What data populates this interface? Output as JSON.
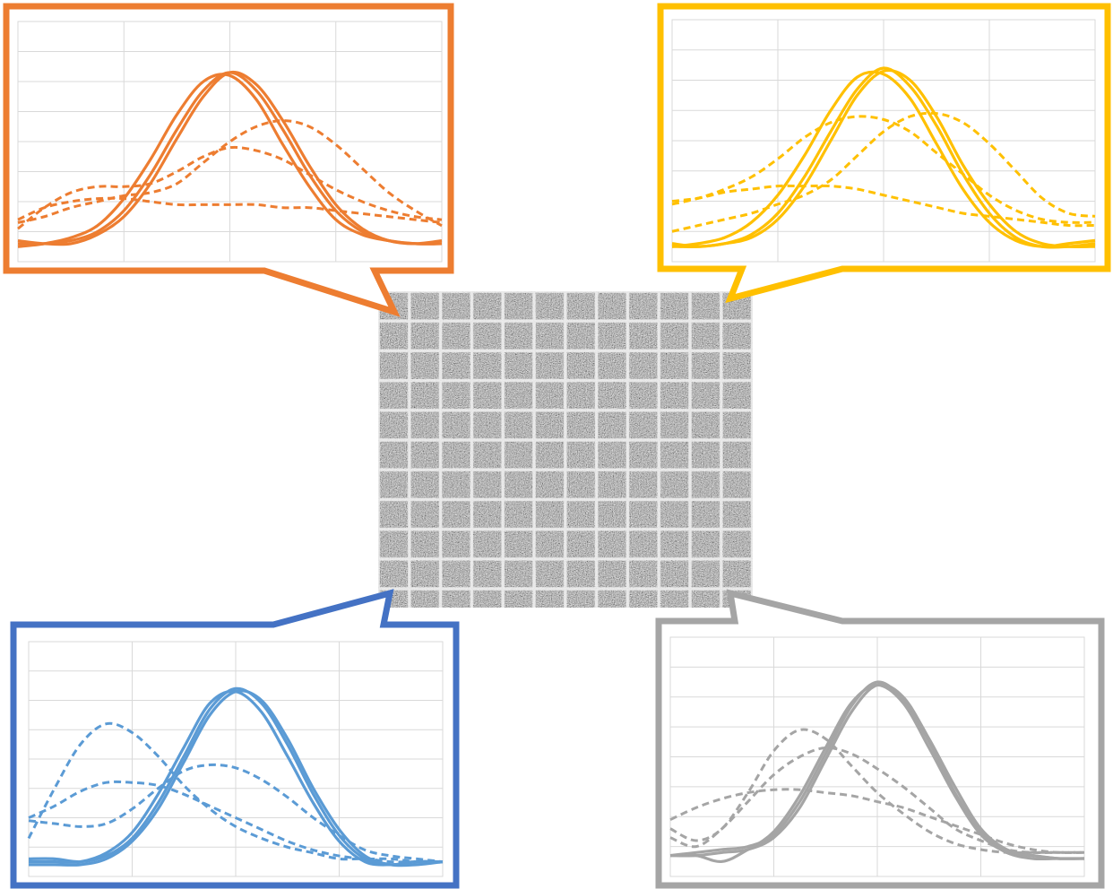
{
  "chart_data": [
    {
      "type": "line",
      "xlim": [
        0,
        4
      ],
      "ylim": [
        0,
        8
      ],
      "xticks": [
        0,
        1,
        2,
        3,
        4
      ],
      "yticks": [
        0,
        1,
        2,
        3,
        4,
        5,
        6,
        7,
        8
      ],
      "grid": true,
      "x": [
        0,
        0.25,
        0.5,
        0.75,
        1,
        1.25,
        1.5,
        1.75,
        2,
        2.25,
        2.5,
        2.75,
        3,
        3.25,
        3.5,
        3.75,
        4
      ],
      "series": [
        {
          "color": "#ed7d31",
          "dashed": false,
          "values": [
            0.6,
            0.6,
            0.7,
            1.0,
            1.7,
            2.9,
            4.4,
            5.7,
            6.3,
            5.7,
            4.4,
            2.9,
            1.7,
            1.0,
            0.7,
            0.6,
            0.6
          ]
        },
        {
          "color": "#ed7d31",
          "dashed": false,
          "values": [
            0.5,
            0.6,
            0.8,
            1.2,
            2.1,
            3.4,
            4.9,
            6.0,
            6.2,
            5.4,
            3.9,
            2.5,
            1.4,
            0.9,
            0.7,
            0.6,
            0.6
          ]
        },
        {
          "color": "#ed7d31",
          "dashed": false,
          "values": [
            0.7,
            0.6,
            0.6,
            0.9,
            1.5,
            2.6,
            4.1,
            5.5,
            6.3,
            5.9,
            4.7,
            3.2,
            1.9,
            1.1,
            0.7,
            0.6,
            0.7
          ]
        },
        {
          "color": "#ed7d31",
          "dashed": true,
          "values": [
            1.3,
            1.5,
            1.8,
            2.0,
            2.2,
            2.3,
            2.6,
            3.3,
            4.0,
            4.5,
            4.7,
            4.5,
            3.9,
            3.1,
            2.3,
            1.7,
            1.2
          ]
        },
        {
          "color": "#ed7d31",
          "dashed": true,
          "values": [
            1.1,
            1.8,
            2.3,
            2.5,
            2.5,
            2.6,
            3.0,
            3.5,
            3.8,
            3.7,
            3.4,
            2.9,
            2.4,
            2.0,
            1.7,
            1.5,
            1.4
          ]
        },
        {
          "color": "#ed7d31",
          "dashed": true,
          "values": [
            1.4,
            1.8,
            2.0,
            2.1,
            2.1,
            2.0,
            1.9,
            1.9,
            1.9,
            1.9,
            1.8,
            1.8,
            1.7,
            1.6,
            1.5,
            1.4,
            1.3
          ]
        }
      ]
    },
    {
      "type": "line",
      "xlim": [
        0,
        4
      ],
      "ylim": [
        0,
        8
      ],
      "xticks": [
        0,
        1,
        2,
        3,
        4
      ],
      "yticks": [
        0,
        1,
        2,
        3,
        4,
        5,
        6,
        7,
        8
      ],
      "grid": true,
      "x": [
        0,
        0.25,
        0.5,
        0.75,
        1,
        1.25,
        1.5,
        1.75,
        2,
        2.25,
        2.5,
        2.75,
        3,
        3.25,
        3.5,
        3.75,
        4
      ],
      "series": [
        {
          "color": "#ffc000",
          "dashed": false,
          "values": [
            0.5,
            0.5,
            0.6,
            0.9,
            1.6,
            2.8,
            4.3,
            5.7,
            6.4,
            5.8,
            4.5,
            2.9,
            1.6,
            0.8,
            0.5,
            0.5,
            0.6
          ]
        },
        {
          "color": "#ffc000",
          "dashed": false,
          "values": [
            0.5,
            0.6,
            0.8,
            1.3,
            2.2,
            3.5,
            5.0,
            6.1,
            6.2,
            5.4,
            3.9,
            2.4,
            1.3,
            0.7,
            0.5,
            0.6,
            0.7
          ]
        },
        {
          "color": "#ffc000",
          "dashed": false,
          "values": [
            0.6,
            0.5,
            0.6,
            0.8,
            1.4,
            2.5,
            4.0,
            5.5,
            6.3,
            6.0,
            4.8,
            3.2,
            1.9,
            1.0,
            0.6,
            0.5,
            0.5
          ]
        },
        {
          "color": "#ffc000",
          "dashed": true,
          "values": [
            1.9,
            2.1,
            2.4,
            2.8,
            3.4,
            4.1,
            4.6,
            4.8,
            4.7,
            4.3,
            3.6,
            2.9,
            2.2,
            1.7,
            1.4,
            1.3,
            1.3
          ]
        },
        {
          "color": "#ffc000",
          "dashed": true,
          "values": [
            1.0,
            1.2,
            1.4,
            1.6,
            1.9,
            2.2,
            2.7,
            3.5,
            4.3,
            4.8,
            4.9,
            4.6,
            3.9,
            3.0,
            2.1,
            1.6,
            1.5
          ]
        },
        {
          "color": "#ffc000",
          "dashed": true,
          "values": [
            2.0,
            2.1,
            2.3,
            2.4,
            2.5,
            2.5,
            2.5,
            2.4,
            2.2,
            2.0,
            1.8,
            1.6,
            1.5,
            1.4,
            1.3,
            1.2,
            1.2
          ]
        }
      ]
    },
    {
      "type": "line",
      "xlim": [
        0,
        4
      ],
      "ylim": [
        0,
        8
      ],
      "xticks": [
        0,
        1,
        2,
        3,
        4
      ],
      "yticks": [
        0,
        1,
        2,
        3,
        4,
        5,
        6,
        7,
        8
      ],
      "grid": true,
      "x": [
        0,
        0.25,
        0.5,
        0.75,
        1,
        1.25,
        1.5,
        1.75,
        2,
        2.25,
        2.5,
        2.75,
        3,
        3.25,
        3.5,
        3.75,
        4
      ],
      "series": [
        {
          "color": "#5b9bd5",
          "dashed": false,
          "values": [
            0.6,
            0.6,
            0.5,
            0.7,
            1.3,
            2.5,
            4.1,
            5.7,
            6.4,
            5.9,
            4.5,
            2.8,
            1.4,
            0.6,
            0.4,
            0.5,
            0.5
          ]
        },
        {
          "color": "#5b9bd5",
          "dashed": false,
          "values": [
            0.5,
            0.5,
            0.5,
            0.8,
            1.5,
            2.8,
            4.4,
            5.9,
            6.3,
            5.6,
            4.1,
            2.5,
            1.2,
            0.5,
            0.4,
            0.5,
            0.5
          ]
        },
        {
          "color": "#5b9bd5",
          "dashed": false,
          "values": [
            0.4,
            0.4,
            0.4,
            0.6,
            1.2,
            2.3,
            3.9,
            5.5,
            6.3,
            6.0,
            4.7,
            3.0,
            1.6,
            0.7,
            0.4,
            0.4,
            0.5
          ]
        },
        {
          "color": "#5b9bd5",
          "dashed": true,
          "values": [
            1.3,
            3.0,
            4.5,
            5.2,
            4.9,
            4.1,
            3.1,
            2.3,
            1.7,
            1.3,
            1.0,
            0.8,
            0.6,
            0.6,
            0.5,
            0.5,
            0.5
          ]
        },
        {
          "color": "#5b9bd5",
          "dashed": true,
          "values": [
            2.0,
            2.4,
            2.9,
            3.2,
            3.2,
            3.1,
            2.8,
            2.4,
            2.0,
            1.6,
            1.2,
            0.9,
            0.7,
            0.6,
            0.6,
            0.5,
            0.5
          ]
        },
        {
          "color": "#5b9bd5",
          "dashed": true,
          "values": [
            1.9,
            1.8,
            1.7,
            1.8,
            2.3,
            3.0,
            3.6,
            3.8,
            3.7,
            3.3,
            2.7,
            2.0,
            1.4,
            0.9,
            0.7,
            0.6,
            0.5
          ]
        }
      ]
    },
    {
      "type": "line",
      "xlim": [
        0,
        4
      ],
      "ylim": [
        0,
        8
      ],
      "xticks": [
        0,
        1,
        2,
        3,
        4
      ],
      "yticks": [
        0,
        1,
        2,
        3,
        4,
        5,
        6,
        7,
        8
      ],
      "grid": true,
      "x": [
        0,
        0.25,
        0.5,
        0.75,
        1,
        1.25,
        1.5,
        1.75,
        2,
        2.25,
        2.5,
        2.75,
        3,
        3.25,
        3.5,
        3.75,
        4
      ],
      "series": [
        {
          "color": "#a5a5a5",
          "dashed": false,
          "values": [
            0.7,
            0.8,
            0.9,
            1.0,
            1.4,
            2.5,
            4.1,
            5.7,
            6.5,
            5.9,
            4.5,
            2.8,
            1.5,
            0.8,
            0.7,
            0.6,
            0.6
          ]
        },
        {
          "color": "#a5a5a5",
          "dashed": false,
          "values": [
            0.7,
            0.7,
            0.8,
            0.9,
            1.3,
            2.3,
            3.9,
            5.5,
            6.4,
            6.0,
            4.6,
            3.0,
            1.6,
            0.9,
            0.7,
            0.6,
            0.6
          ]
        },
        {
          "color": "#a5a5a5",
          "dashed": false,
          "values": [
            0.7,
            0.7,
            0.5,
            0.9,
            1.5,
            2.7,
            4.3,
            5.8,
            6.4,
            5.8,
            4.3,
            2.7,
            1.4,
            0.8,
            0.6,
            0.6,
            0.6
          ]
        },
        {
          "color": "#a5a5a5",
          "dashed": true,
          "values": [
            1.6,
            1.2,
            1.6,
            2.8,
            4.2,
            4.9,
            4.6,
            3.7,
            2.8,
            2.1,
            1.5,
            1.1,
            0.9,
            0.8,
            0.8,
            0.8,
            0.8
          ]
        },
        {
          "color": "#a5a5a5",
          "dashed": true,
          "values": [
            1.3,
            1.0,
            1.6,
            2.5,
            3.4,
            4.0,
            4.3,
            4.1,
            3.6,
            3.0,
            2.3,
            1.6,
            1.2,
            0.9,
            0.8,
            0.8,
            0.8
          ]
        },
        {
          "color": "#a5a5a5",
          "dashed": true,
          "values": [
            1.9,
            2.3,
            2.6,
            2.8,
            2.9,
            2.9,
            2.8,
            2.7,
            2.5,
            2.3,
            2.0,
            1.7,
            1.4,
            1.1,
            0.9,
            0.8,
            0.8
          ]
        }
      ]
    }
  ]
}
